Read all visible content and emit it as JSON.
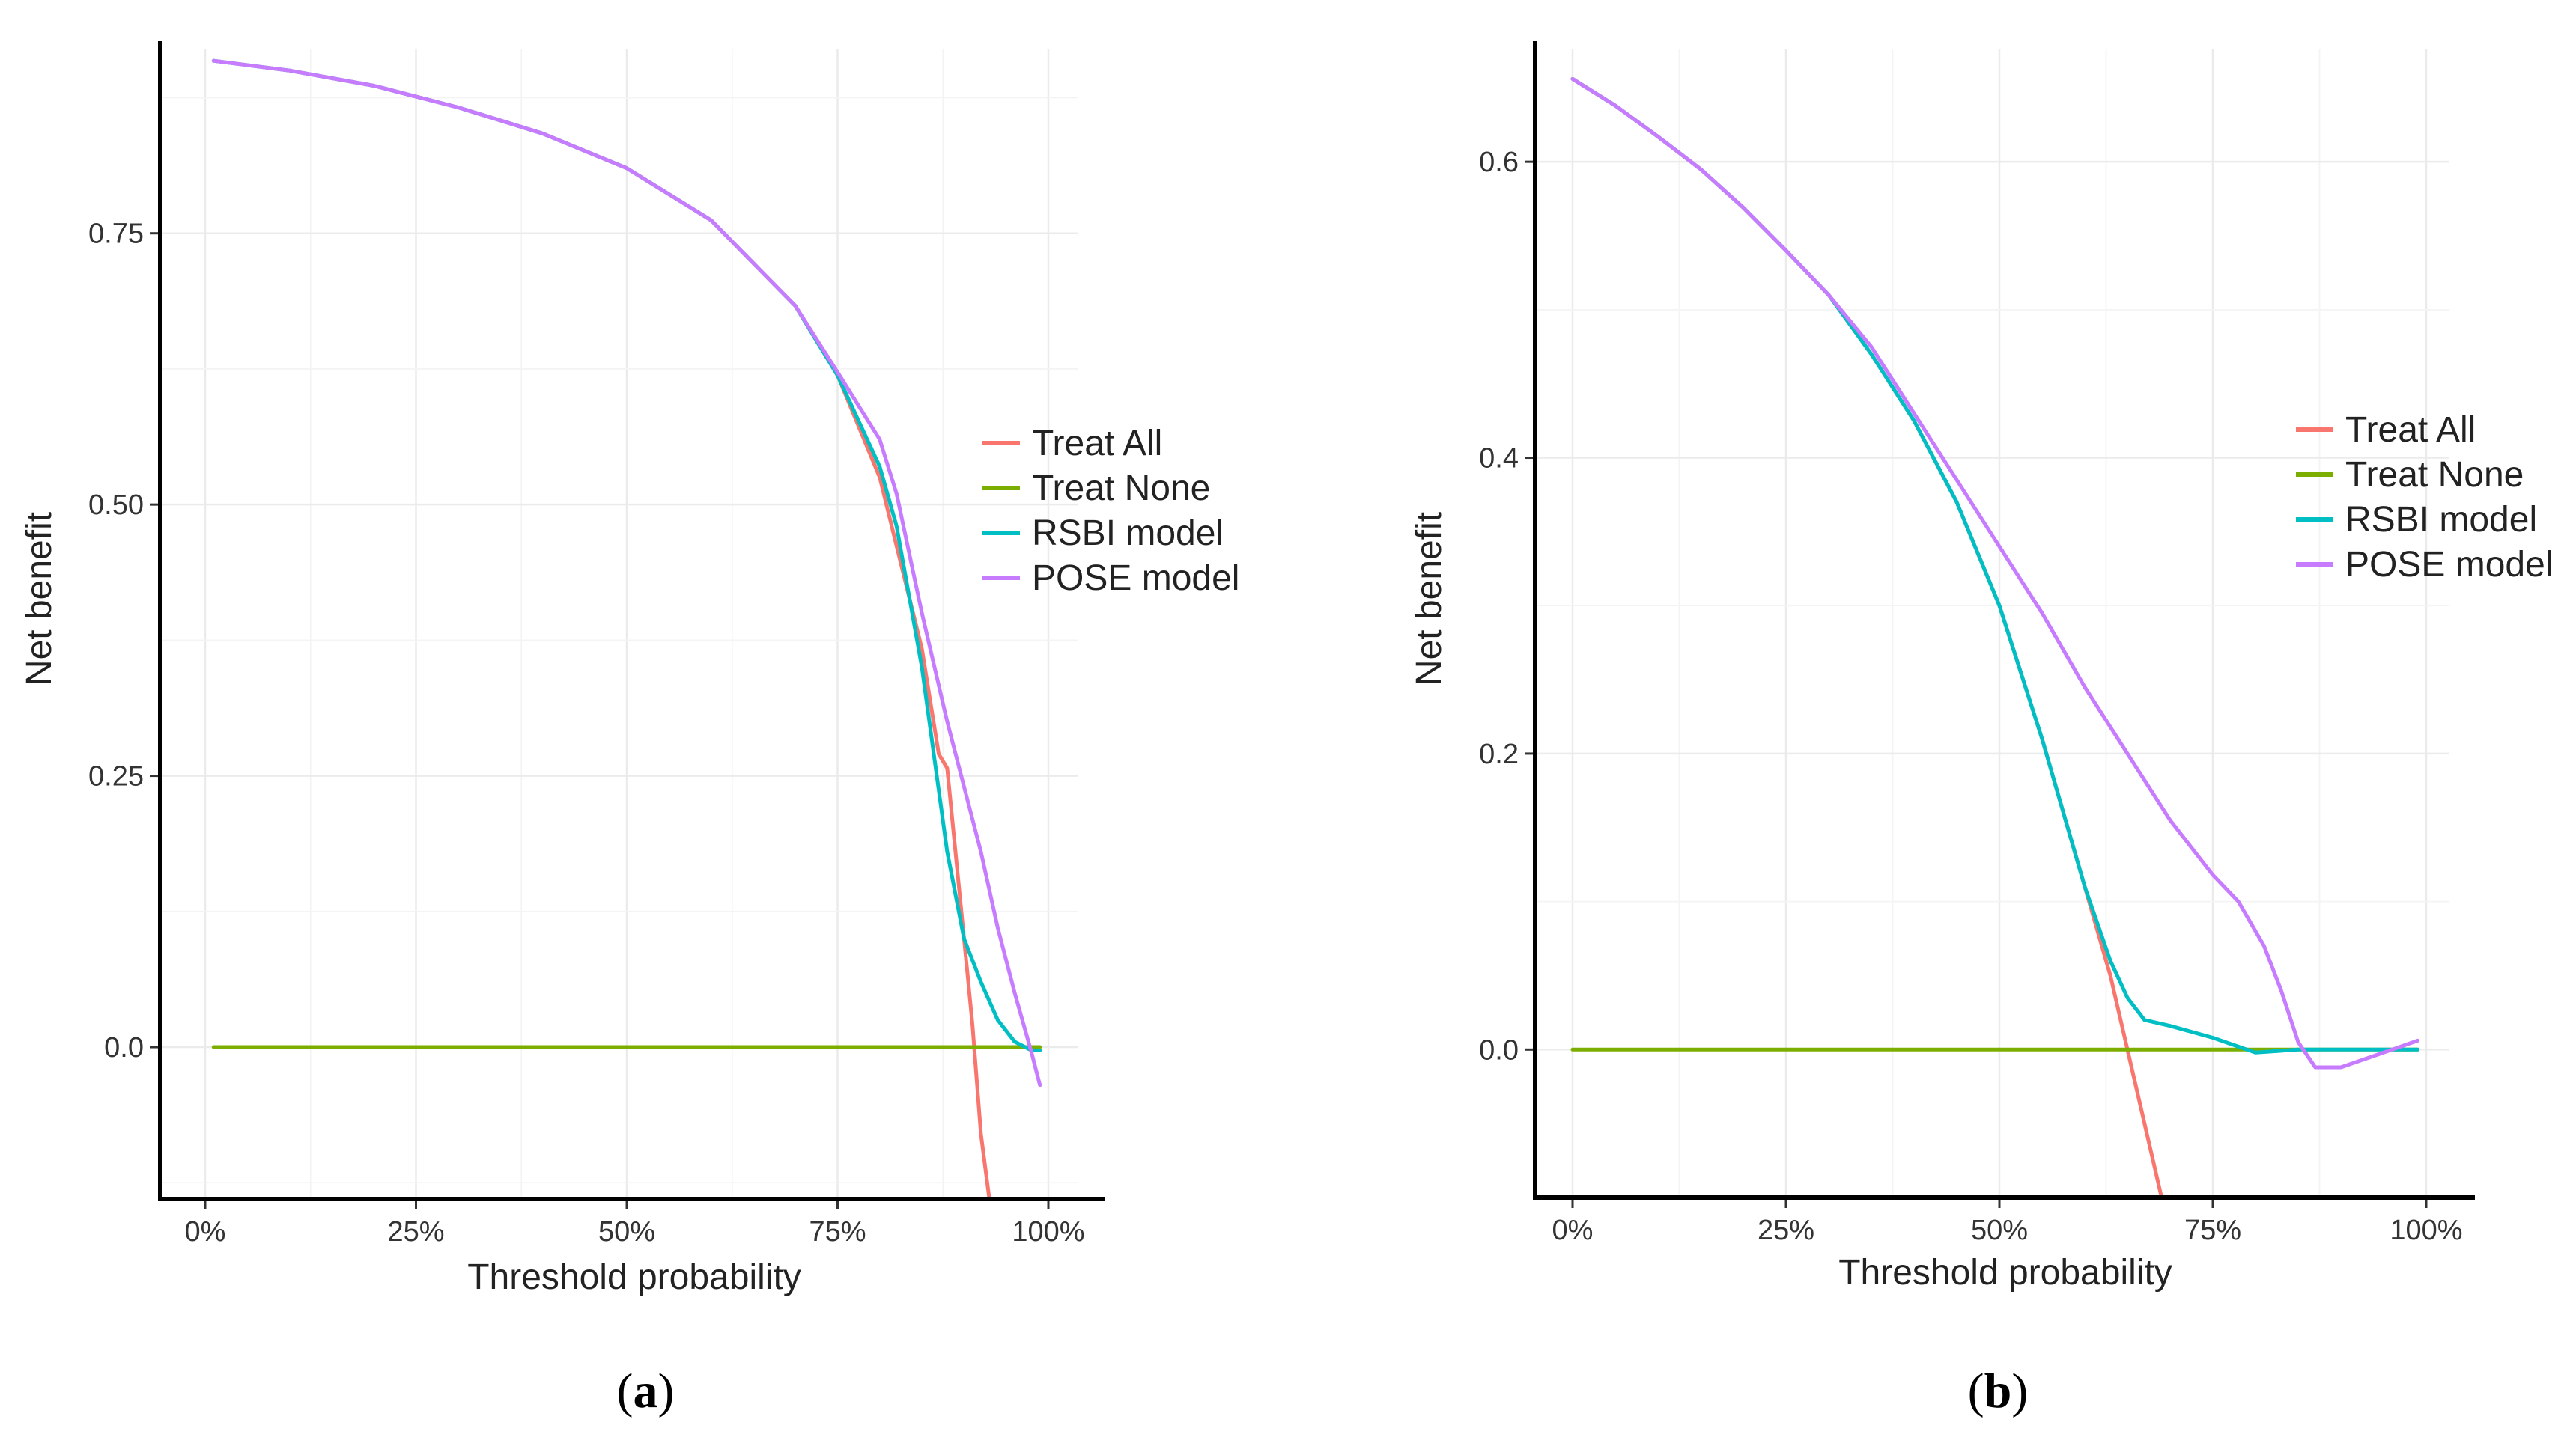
{
  "colors": {
    "treat_all": "#F8766D",
    "treat_none": "#7CAE00",
    "rsbi": "#00BFC4",
    "pose": "#C77CFF"
  },
  "captions": {
    "a": "a",
    "b": "b"
  },
  "chart_data": [
    {
      "id": "a",
      "type": "line",
      "title": "",
      "xlabel": "Threshold probability",
      "ylabel": "Net benefit",
      "xlim": [
        -0.03,
        1.05
      ],
      "ylim": [
        -0.14,
        0.925
      ],
      "xticks": [
        0,
        0.25,
        0.5,
        0.75,
        1.0
      ],
      "xtick_labels": [
        "0%",
        "25%",
        "50%",
        "75%",
        "100%"
      ],
      "yticks": [
        0,
        0.25,
        0.5,
        0.75
      ],
      "ytick_labels": [
        "0.0",
        "0.25",
        "0.50",
        "0.75"
      ],
      "legend_position": "right",
      "series": [
        {
          "name": "Treat All",
          "color_key": "treat_all",
          "x": [
            0.01,
            0.1,
            0.2,
            0.3,
            0.4,
            0.5,
            0.6,
            0.7,
            0.75,
            0.8,
            0.85,
            0.87,
            0.88,
            0.9,
            0.91,
            0.92,
            0.93
          ],
          "y": [
            0.909,
            0.9,
            0.886,
            0.866,
            0.842,
            0.81,
            0.762,
            0.683,
            0.619,
            0.525,
            0.367,
            0.27,
            0.257,
            0.1,
            0.02,
            -0.08,
            -0.14
          ]
        },
        {
          "name": "Treat None",
          "color_key": "treat_none",
          "x": [
            0.01,
            0.99
          ],
          "y": [
            0,
            0
          ]
        },
        {
          "name": "RSBI model",
          "color_key": "rsbi",
          "x": [
            0.01,
            0.1,
            0.2,
            0.3,
            0.4,
            0.5,
            0.6,
            0.7,
            0.75,
            0.8,
            0.82,
            0.85,
            0.88,
            0.9,
            0.92,
            0.94,
            0.96,
            0.98,
            0.99
          ],
          "y": [
            0.909,
            0.9,
            0.886,
            0.866,
            0.842,
            0.81,
            0.762,
            0.683,
            0.619,
            0.535,
            0.48,
            0.35,
            0.18,
            0.1,
            0.06,
            0.025,
            0.005,
            -0.003,
            -0.003
          ]
        },
        {
          "name": "POSE model",
          "color_key": "pose",
          "x": [
            0.01,
            0.1,
            0.2,
            0.3,
            0.4,
            0.5,
            0.6,
            0.7,
            0.75,
            0.8,
            0.82,
            0.85,
            0.88,
            0.9,
            0.92,
            0.94,
            0.96,
            0.98,
            0.99
          ],
          "y": [
            0.909,
            0.9,
            0.886,
            0.866,
            0.842,
            0.81,
            0.762,
            0.683,
            0.622,
            0.56,
            0.51,
            0.4,
            0.3,
            0.24,
            0.18,
            0.11,
            0.05,
            -0.005,
            -0.035
          ]
        }
      ]
    },
    {
      "id": "b",
      "type": "line",
      "title": "",
      "xlabel": "Threshold probability",
      "ylabel": "Net benefit",
      "xlim": [
        -0.03,
        1.05
      ],
      "ylim": [
        -0.1,
        0.68
      ],
      "xticks": [
        0,
        0.25,
        0.5,
        0.75,
        1.0
      ],
      "xtick_labels": [
        "0%",
        "25%",
        "50%",
        "75%",
        "100%"
      ],
      "yticks": [
        0,
        0.2,
        0.4,
        0.6
      ],
      "ytick_labels": [
        "0.0",
        "0.2",
        "0.4",
        "0.6"
      ],
      "legend_position": "right",
      "series": [
        {
          "name": "Treat All",
          "color_key": "treat_all",
          "x": [
            0.0,
            0.05,
            0.1,
            0.15,
            0.2,
            0.25,
            0.3,
            0.35,
            0.4,
            0.45,
            0.5,
            0.55,
            0.6,
            0.63,
            0.65,
            0.67,
            0.69
          ],
          "y": [
            0.656,
            0.638,
            0.617,
            0.595,
            0.569,
            0.54,
            0.51,
            0.47,
            0.425,
            0.37,
            0.3,
            0.21,
            0.11,
            0.05,
            0.0,
            -0.05,
            -0.1
          ]
        },
        {
          "name": "Treat None",
          "color_key": "treat_none",
          "x": [
            0.0,
            0.99
          ],
          "y": [
            0,
            0
          ]
        },
        {
          "name": "RSBI model",
          "color_key": "rsbi",
          "x": [
            0.0,
            0.05,
            0.1,
            0.15,
            0.2,
            0.25,
            0.3,
            0.35,
            0.4,
            0.45,
            0.5,
            0.55,
            0.6,
            0.63,
            0.65,
            0.67,
            0.7,
            0.75,
            0.8,
            0.85,
            0.9,
            0.95,
            0.99
          ],
          "y": [
            0.656,
            0.638,
            0.617,
            0.595,
            0.569,
            0.54,
            0.51,
            0.47,
            0.425,
            0.37,
            0.3,
            0.21,
            0.11,
            0.06,
            0.035,
            0.02,
            0.016,
            0.008,
            -0.002,
            0.0,
            0.0,
            0.0,
            0.0
          ]
        },
        {
          "name": "POSE model",
          "color_key": "pose",
          "x": [
            0.0,
            0.05,
            0.1,
            0.15,
            0.2,
            0.25,
            0.3,
            0.35,
            0.4,
            0.45,
            0.5,
            0.55,
            0.6,
            0.65,
            0.7,
            0.75,
            0.78,
            0.81,
            0.83,
            0.85,
            0.87,
            0.9,
            0.95,
            0.99
          ],
          "y": [
            0.656,
            0.638,
            0.617,
            0.595,
            0.569,
            0.54,
            0.51,
            0.475,
            0.43,
            0.385,
            0.34,
            0.295,
            0.245,
            0.2,
            0.155,
            0.118,
            0.1,
            0.07,
            0.04,
            0.005,
            -0.012,
            -0.012,
            -0.002,
            0.006
          ]
        }
      ]
    }
  ]
}
